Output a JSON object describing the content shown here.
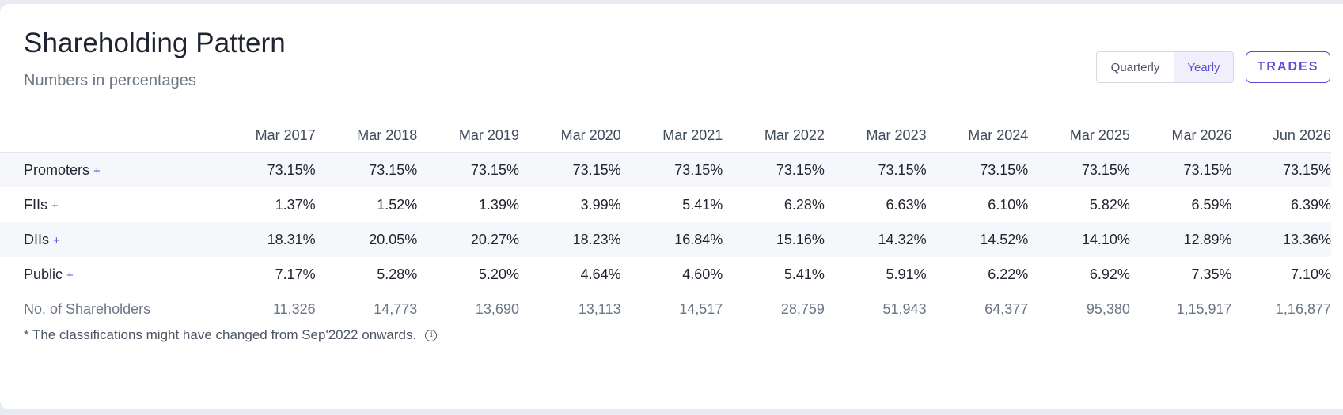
{
  "header": {
    "title": "Shareholding Pattern",
    "subtitle": "Numbers in percentages"
  },
  "controls": {
    "toggle": [
      "Quarterly",
      "Yearly"
    ],
    "selected": "Yearly",
    "trades_label": "TRADES"
  },
  "table": {
    "columns": [
      "Mar 2017",
      "Mar 2018",
      "Mar 2019",
      "Mar 2020",
      "Mar 2021",
      "Mar 2022",
      "Mar 2023",
      "Mar 2024",
      "Mar 2025",
      "Mar 2026",
      "Jun 2026"
    ],
    "rows": [
      {
        "label": "Promoters",
        "expand": "+",
        "values": [
          "73.15%",
          "73.15%",
          "73.15%",
          "73.15%",
          "73.15%",
          "73.15%",
          "73.15%",
          "73.15%",
          "73.15%",
          "73.15%",
          "73.15%"
        ]
      },
      {
        "label": "FIIs",
        "expand": "+",
        "values": [
          "1.37%",
          "1.52%",
          "1.39%",
          "3.99%",
          "5.41%",
          "6.28%",
          "6.63%",
          "6.10%",
          "5.82%",
          "6.59%",
          "6.39%"
        ]
      },
      {
        "label": "DIIs",
        "expand": "+",
        "values": [
          "18.31%",
          "20.05%",
          "20.27%",
          "18.23%",
          "16.84%",
          "15.16%",
          "14.32%",
          "14.52%",
          "14.10%",
          "12.89%",
          "13.36%"
        ]
      },
      {
        "label": "Public",
        "expand": "+",
        "values": [
          "7.17%",
          "5.28%",
          "5.20%",
          "4.64%",
          "4.60%",
          "5.41%",
          "5.91%",
          "6.22%",
          "6.92%",
          "7.35%",
          "7.10%"
        ]
      },
      {
        "label": "No. of Shareholders",
        "values": [
          "11,326",
          "14,773",
          "13,690",
          "13,113",
          "14,517",
          "28,759",
          "51,943",
          "64,377",
          "95,380",
          "1,15,917",
          "1,16,877"
        ]
      }
    ]
  },
  "footnote": {
    "text": "* The classifications might have changed from Sep'2022 onwards.",
    "icon": "info-icon"
  },
  "colors": {
    "accent": "#5b4fd6",
    "shaded_row": "#f6f7fb"
  }
}
